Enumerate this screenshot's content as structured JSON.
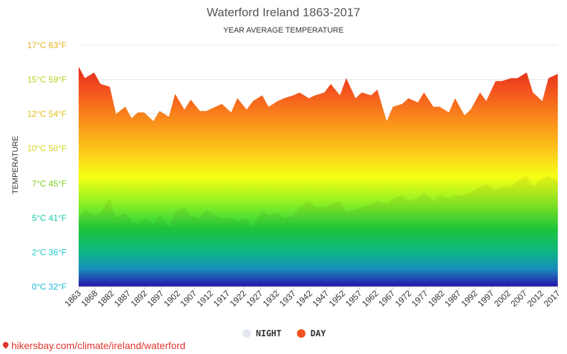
{
  "chart_data": {
    "type": "area",
    "title": "Waterford Ireland 1863-2017",
    "subtitle": "YEAR AVERAGE TEMPERATURE",
    "ylabel": "TEMPERATURE",
    "ylim": [
      0,
      17
    ],
    "yticks": [
      {
        "value": 0,
        "label": "0°C 32°F",
        "color": "#1cb5d6"
      },
      {
        "value": 2.4,
        "label": "2°C 36°F",
        "color": "#1cc9c9"
      },
      {
        "value": 4.8,
        "label": "5°C 41°F",
        "color": "#17c8a8"
      },
      {
        "value": 7.2,
        "label": "7°C 45°F",
        "color": "#7ccf1f"
      },
      {
        "value": 9.7,
        "label": "10°C 50°F",
        "color": "#d5d51a"
      },
      {
        "value": 12.1,
        "label": "12°C 54°F",
        "color": "#e2c21a"
      },
      {
        "value": 14.5,
        "label": "15°C 59°F",
        "color": "#b7d11c"
      },
      {
        "value": 16.9,
        "label": "17°C 63°F",
        "color": "#e6b01c"
      }
    ],
    "xtick_labels": [
      "1863",
      "1868",
      "1882",
      "1887",
      "1892",
      "1897",
      "1902",
      "1907",
      "1912",
      "1917",
      "1922",
      "1927",
      "1932",
      "1937",
      "1942",
      "1947",
      "1952",
      "1957",
      "1962",
      "1967",
      "1972",
      "1977",
      "1982",
      "1987",
      "1992",
      "1997",
      "2002",
      "2007",
      "2012",
      "2017"
    ],
    "grid": true,
    "legend": "bottom",
    "series": [
      {
        "name": "DAY",
        "color": "#f4511e",
        "x": [
          1863,
          1865,
          1868,
          1870,
          1873,
          1875,
          1878,
          1880,
          1882,
          1884,
          1887,
          1889,
          1892,
          1894,
          1897,
          1899,
          1902,
          1904,
          1907,
          1909,
          1912,
          1914,
          1917,
          1919,
          1922,
          1924,
          1927,
          1929,
          1932,
          1934,
          1937,
          1939,
          1942,
          1944,
          1947,
          1949,
          1952,
          1954,
          1957,
          1959,
          1962,
          1964,
          1967,
          1969,
          1972,
          1974,
          1977,
          1979,
          1982,
          1984,
          1987,
          1989,
          1992,
          1994,
          1997,
          1999,
          2002,
          2004,
          2007,
          2009,
          2012,
          2014,
          2017
        ],
        "values": [
          15.4,
          14.6,
          15.0,
          14.2,
          14.0,
          12.1,
          12.6,
          11.8,
          12.2,
          12.2,
          11.6,
          12.3,
          11.9,
          13.5,
          12.4,
          13.1,
          12.3,
          12.3,
          12.6,
          12.8,
          12.2,
          13.2,
          12.4,
          13.0,
          13.4,
          12.6,
          13.0,
          13.2,
          13.4,
          13.6,
          13.2,
          13.4,
          13.6,
          14.2,
          13.4,
          14.6,
          13.2,
          13.6,
          13.4,
          13.8,
          11.6,
          12.6,
          12.8,
          13.2,
          12.9,
          13.6,
          12.6,
          12.6,
          12.2,
          13.2,
          12.0,
          12.4,
          13.6,
          13.0,
          14.4,
          14.4,
          14.6,
          14.6,
          15.0,
          13.6,
          13.0,
          14.6,
          14.9
        ]
      },
      {
        "name": "NIGHT",
        "color": "#e3e8f3",
        "x": [
          1863,
          1865,
          1868,
          1870,
          1873,
          1875,
          1878,
          1880,
          1882,
          1884,
          1887,
          1889,
          1892,
          1894,
          1897,
          1899,
          1902,
          1904,
          1907,
          1909,
          1912,
          1914,
          1917,
          1919,
          1922,
          1924,
          1927,
          1929,
          1932,
          1934,
          1937,
          1939,
          1942,
          1944,
          1947,
          1949,
          1952,
          1954,
          1957,
          1959,
          1962,
          1964,
          1967,
          1969,
          1972,
          1974,
          1977,
          1979,
          1982,
          1984,
          1987,
          1989,
          1992,
          1994,
          1997,
          1999,
          2002,
          2004,
          2007,
          2009,
          2012,
          2014,
          2017
        ],
        "values": [
          4.8,
          5.4,
          5.0,
          5.2,
          6.2,
          4.8,
          5.2,
          4.6,
          4.4,
          4.8,
          4.4,
          5.0,
          4.2,
          5.2,
          5.6,
          5.0,
          4.8,
          5.4,
          5.0,
          4.8,
          4.8,
          4.6,
          4.8,
          4.2,
          5.4,
          5.0,
          5.2,
          4.8,
          5.0,
          5.6,
          6.0,
          5.6,
          5.6,
          5.8,
          6.0,
          5.2,
          5.4,
          5.6,
          5.8,
          6.0,
          5.8,
          6.2,
          6.4,
          6.0,
          6.2,
          6.6,
          6.0,
          6.4,
          6.2,
          6.4,
          6.4,
          6.6,
          7.0,
          7.2,
          6.8,
          7.0,
          7.0,
          7.4,
          7.8,
          7.0,
          7.6,
          7.8,
          7.4
        ]
      }
    ]
  },
  "legend": {
    "night_label": "NIGHT",
    "day_label": "DAY",
    "night_color": "#e3e8f3",
    "day_color": "#f4511e"
  },
  "source": {
    "text": "hikersbay.com/climate/ireland/waterford"
  }
}
